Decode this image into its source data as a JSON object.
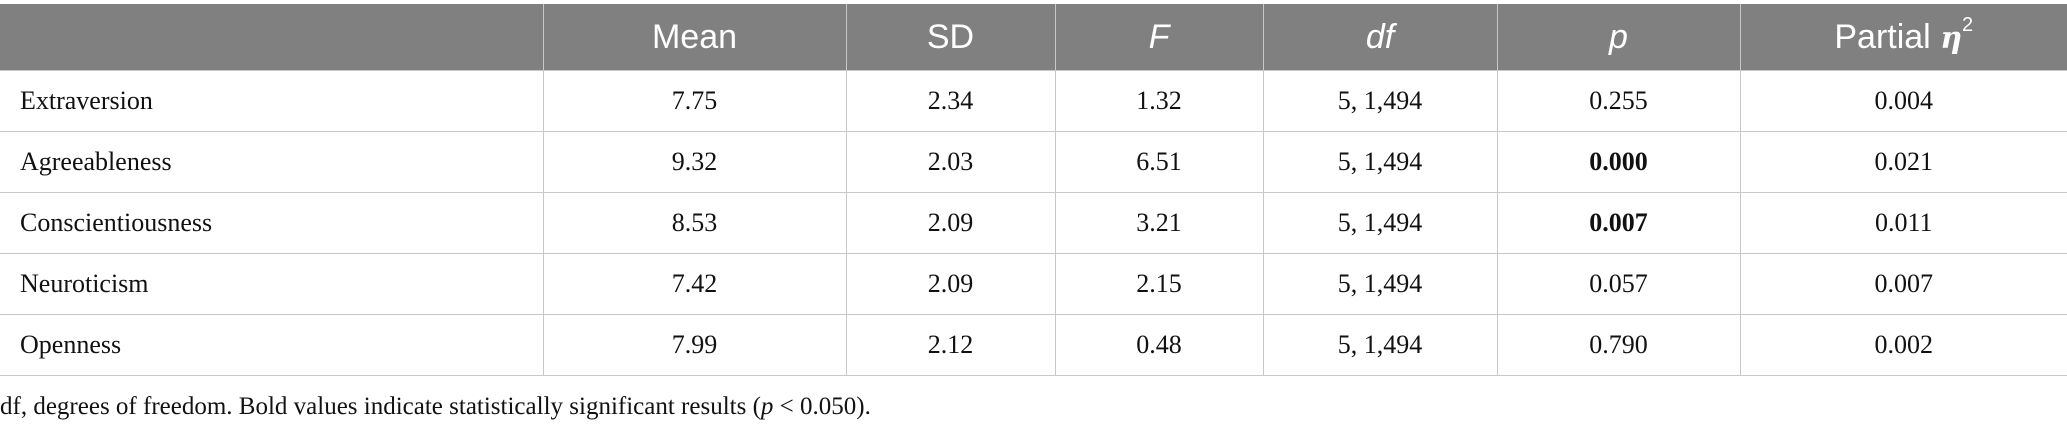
{
  "table": {
    "headers": [
      {
        "label": "",
        "italic": false
      },
      {
        "label": "Mean",
        "italic": false
      },
      {
        "label": "SD",
        "italic": false
      },
      {
        "label": "F",
        "italic": true
      },
      {
        "label": "df",
        "italic": true
      },
      {
        "label": "p",
        "italic": true
      },
      {
        "label": "Partial ",
        "italic": false,
        "symbol": "η",
        "superscript": "2"
      }
    ],
    "rows": [
      {
        "name": "Extraversion",
        "mean": "7.75",
        "sd": "2.34",
        "f": "1.32",
        "df": "5, 1,494",
        "p": "0.255",
        "p_bold": false,
        "eta2": "0.004"
      },
      {
        "name": "Agreeableness",
        "mean": "9.32",
        "sd": "2.03",
        "f": "6.51",
        "df": "5, 1,494",
        "p": "0.000",
        "p_bold": true,
        "eta2": "0.021"
      },
      {
        "name": "Conscientiousness",
        "mean": "8.53",
        "sd": "2.09",
        "f": "3.21",
        "df": "5, 1,494",
        "p": "0.007",
        "p_bold": true,
        "eta2": "0.011"
      },
      {
        "name": "Neuroticism",
        "mean": "7.42",
        "sd": "2.09",
        "f": "2.15",
        "df": "5, 1,494",
        "p": "0.057",
        "p_bold": false,
        "eta2": "0.007"
      },
      {
        "name": "Openness",
        "mean": "7.99",
        "sd": "2.12",
        "f": "0.48",
        "df": "5, 1,494",
        "p": "0.790",
        "p_bold": false,
        "eta2": "0.002"
      }
    ]
  },
  "footnote": {
    "prefix": "df, degrees of freedom. Bold values indicate statistically significant results (",
    "p_symbol": "p",
    "suffix": " < 0.050)."
  },
  "colors": {
    "header_bg": "#808080",
    "header_text": "#ffffff",
    "grid_lines": "#c8c8c8"
  }
}
